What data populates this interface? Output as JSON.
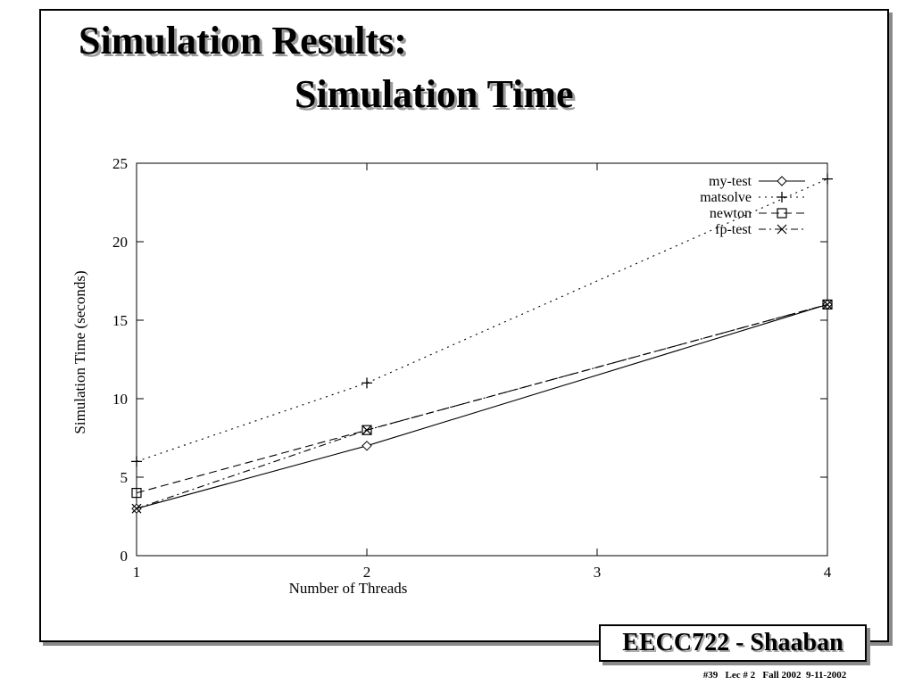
{
  "slide": {
    "title_line1": "Simulation Results:",
    "title_line2": "Simulation Time",
    "course_label": "EECC722 - Shaaban",
    "footer_text": "#39   Lec # 2   Fall 2002  9-11-2002"
  },
  "chart_data": {
    "type": "line",
    "xlabel": "Number of Threads",
    "ylabel": "Simulation Time (seconds)",
    "x": [
      1,
      2,
      3,
      4
    ],
    "x_ticks": [
      "1",
      "2",
      "3",
      "4"
    ],
    "y_ticks": [
      "0",
      "5",
      "10",
      "15",
      "20",
      "25"
    ],
    "xlim": [
      1,
      4
    ],
    "ylim": [
      0,
      25
    ],
    "grid": false,
    "legend_position": "top-right",
    "series": [
      {
        "name": "my-test",
        "x": [
          1,
          2,
          4
        ],
        "values": [
          3,
          7,
          16
        ],
        "marker": "diamond",
        "dash": "solid"
      },
      {
        "name": "matsolve",
        "x": [
          1,
          2,
          4
        ],
        "values": [
          6,
          11,
          24
        ],
        "marker": "plus",
        "dash": "dotted"
      },
      {
        "name": "newton",
        "x": [
          1,
          2,
          4
        ],
        "values": [
          4,
          8,
          16
        ],
        "marker": "square",
        "dash": "dashed"
      },
      {
        "name": "fp-test",
        "x": [
          1,
          2,
          4
        ],
        "values": [
          3,
          8,
          16
        ],
        "marker": "cross",
        "dash": "dash-dot"
      }
    ]
  }
}
